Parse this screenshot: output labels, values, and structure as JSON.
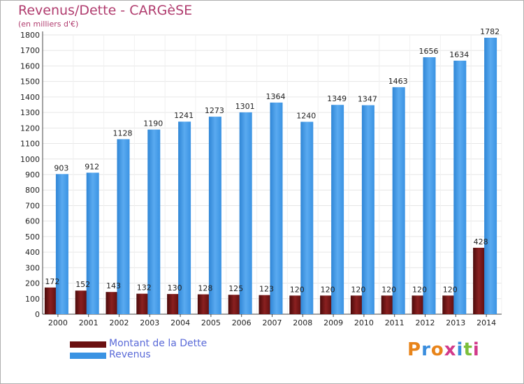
{
  "header": {
    "title": "Revenus/Dette - CARGèSE",
    "subtitle": "(en milliers d'€)"
  },
  "legend": {
    "debt_label": "Montant de la Dette",
    "revenue_label": "Revenus"
  },
  "logo": {
    "text": "Proxiti",
    "colors": [
      "#e8841a",
      "#3a8ddd",
      "#e8841a",
      "#d23a8a",
      "#3a8ddd",
      "#7bbf3a",
      "#d23a8a"
    ]
  },
  "colors": {
    "debt": "#6b1010",
    "debt_light": "#9a2a2a",
    "revenue": "#3a93e3",
    "revenue_light": "#5aaaf0",
    "title": "#b03c6e",
    "legend_text": "#5a6ad8"
  },
  "chart_data": {
    "type": "bar",
    "categories": [
      "2000",
      "2001",
      "2002",
      "2003",
      "2004",
      "2005",
      "2006",
      "2007",
      "2008",
      "2009",
      "2010",
      "2011",
      "2012",
      "2013",
      "2014"
    ],
    "series": [
      {
        "name": "Montant de la Dette",
        "values": [
          172,
          152,
          143,
          132,
          130,
          128,
          125,
          123,
          120,
          120,
          120,
          120,
          120,
          120,
          428
        ]
      },
      {
        "name": "Revenus",
        "values": [
          903,
          912,
          1128,
          1190,
          1241,
          1273,
          1301,
          1364,
          1240,
          1349,
          1347,
          1463,
          1656,
          1634,
          1782
        ]
      }
    ],
    "data_labels": {
      "debt": [
        "172",
        "152",
        "143",
        "132",
        "130",
        "128",
        "125",
        "123",
        "120",
        "120",
        "120",
        "120",
        "120",
        "120",
        "428"
      ],
      "revenue": [
        "903",
        "912",
        "1128",
        "1190",
        "1241",
        "1273",
        "1301",
        "1364",
        "1240",
        "1349",
        "1347",
        "1463",
        "1656",
        "1634",
        "1782"
      ]
    },
    "yticks": [
      "0",
      "100",
      "200",
      "300",
      "400",
      "500",
      "600",
      "700",
      "800",
      "900",
      "1000",
      "1100",
      "1200",
      "1300",
      "1400",
      "1500",
      "1600",
      "1700",
      "1800"
    ],
    "ylim": [
      0,
      1800
    ],
    "grid": true,
    "legend_position": "bottom-left"
  }
}
